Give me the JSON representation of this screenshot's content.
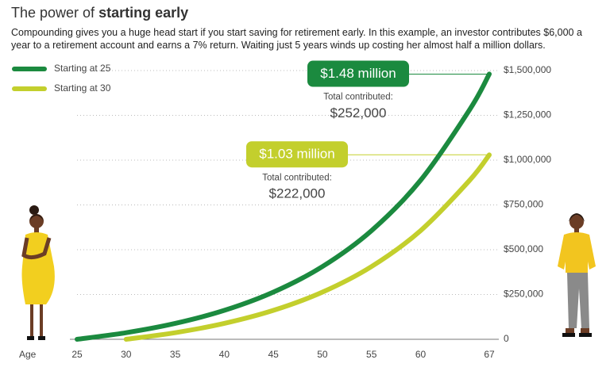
{
  "chart_data": {
    "type": "line",
    "title": "The power of",
    "title_bold": "starting early",
    "subtitle": "Compounding gives you a huge head start if you start saving for retirement early. In this example, an investor contributes $6,000 a year to a retirement account and earns a 7% return. Waiting just 5 years winds up costing her almost half a million dollars.",
    "x_label": "Age",
    "x": [
      25,
      30,
      35,
      40,
      45,
      50,
      55,
      60,
      65,
      67
    ],
    "series": [
      {
        "name": "Starting at 25",
        "color": "#1b8a3f",
        "values": [
          0,
          36920,
          88700,
          161330,
          263190,
          406060,
          606440,
          887480,
          1281660,
          1480660
        ]
      },
      {
        "name": "Starting at 30",
        "color": "#c3cf2d",
        "values": [
          null,
          0,
          36920,
          88700,
          161330,
          263190,
          406060,
          606440,
          887480,
          1029360
        ]
      }
    ],
    "xlim": [
      25,
      67
    ],
    "xticks": [
      25,
      30,
      35,
      40,
      45,
      50,
      55,
      60,
      67
    ],
    "ylim": [
      0,
      1500000
    ],
    "yticks": [
      0,
      {
        "value": 250000,
        "label": "$250,000"
      },
      {
        "value": 500000,
        "label": "$500,000"
      },
      {
        "value": 750000,
        "label": "$750,000"
      },
      {
        "value": 1000000,
        "label": "$1,000,000"
      },
      {
        "value": 1250000,
        "label": "$1,250,000"
      },
      {
        "value": 1500000,
        "label": "$1,500,000"
      }
    ],
    "grid": true,
    "legend": "top-left",
    "annotations": [
      {
        "value": 1480000,
        "label": "$1.48 million",
        "note": "Total contributed:",
        "total": "$252,000"
      },
      {
        "value": 1030000,
        "label": "$1.03 million",
        "note": "Total contributed:",
        "total": "$222,000"
      }
    ]
  }
}
